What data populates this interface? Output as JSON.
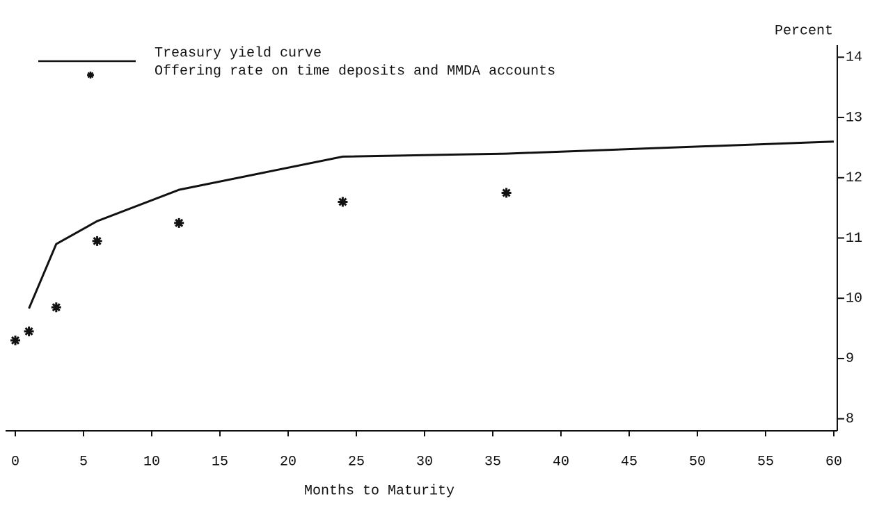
{
  "chart_data": {
    "type": "line",
    "xlabel": "Months to Maturity",
    "ylabel": "Percent",
    "series": [
      {
        "name": "Treasury yield curve",
        "color": "#111111",
        "marker": "line",
        "x": [
          1,
          3,
          6,
          12,
          24,
          36,
          60
        ],
        "values": [
          9.83,
          10.9,
          11.28,
          11.8,
          12.35,
          12.4,
          12.6
        ]
      },
      {
        "name": "Offering rate on time deposits and MMDA accounts",
        "color": "#111111",
        "marker": "star",
        "x": [
          0,
          1,
          3,
          6,
          12,
          24,
          36
        ],
        "values": [
          9.3,
          9.45,
          9.85,
          10.95,
          11.25,
          11.6,
          11.75
        ]
      }
    ],
    "xlim": [
      0,
      60
    ],
    "xticks": [
      0,
      5,
      10,
      15,
      20,
      25,
      30,
      35,
      40,
      45,
      50,
      55,
      60
    ],
    "ylim": [
      7.8,
      14.2
    ],
    "yticks": [
      8,
      9,
      10,
      11,
      12,
      13,
      14
    ],
    "yaxis_side": "right",
    "grid": false
  }
}
